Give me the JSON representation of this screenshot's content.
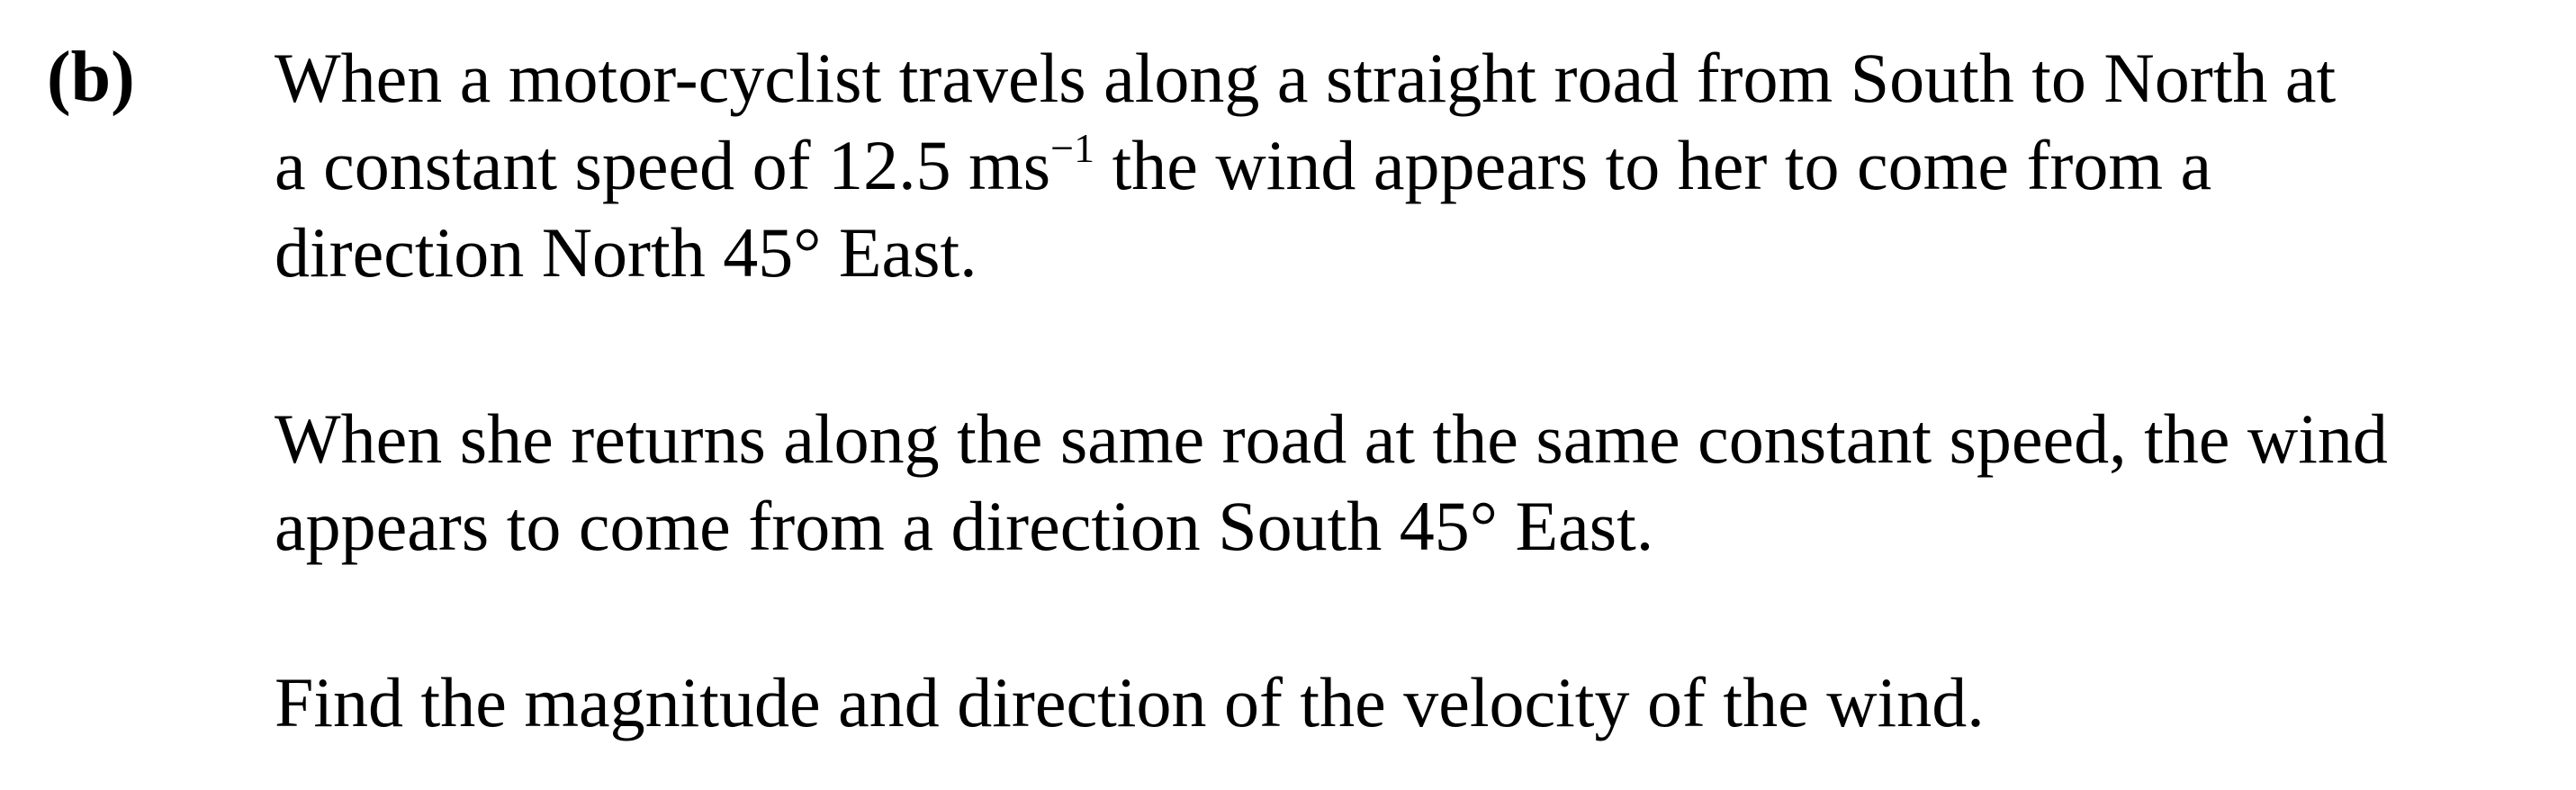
{
  "question": {
    "part_label": "(b)",
    "paragraph1": {
      "line1": "When a motor-cyclist travels along a straight road from South to North at",
      "line2_before_unit": "a constant speed of 12.5  ms",
      "line2_superscript": "−1",
      "line2_after_unit": "  the wind appears to her to come from a",
      "line3": "direction North  45°  East."
    },
    "paragraph2": {
      "line1": "When she returns along the same road at the same constant speed, the wind",
      "line2": "appears to come from a direction South  45°  East."
    },
    "paragraph3": {
      "line1": "Find the magnitude and direction of the velocity of the wind."
    }
  }
}
